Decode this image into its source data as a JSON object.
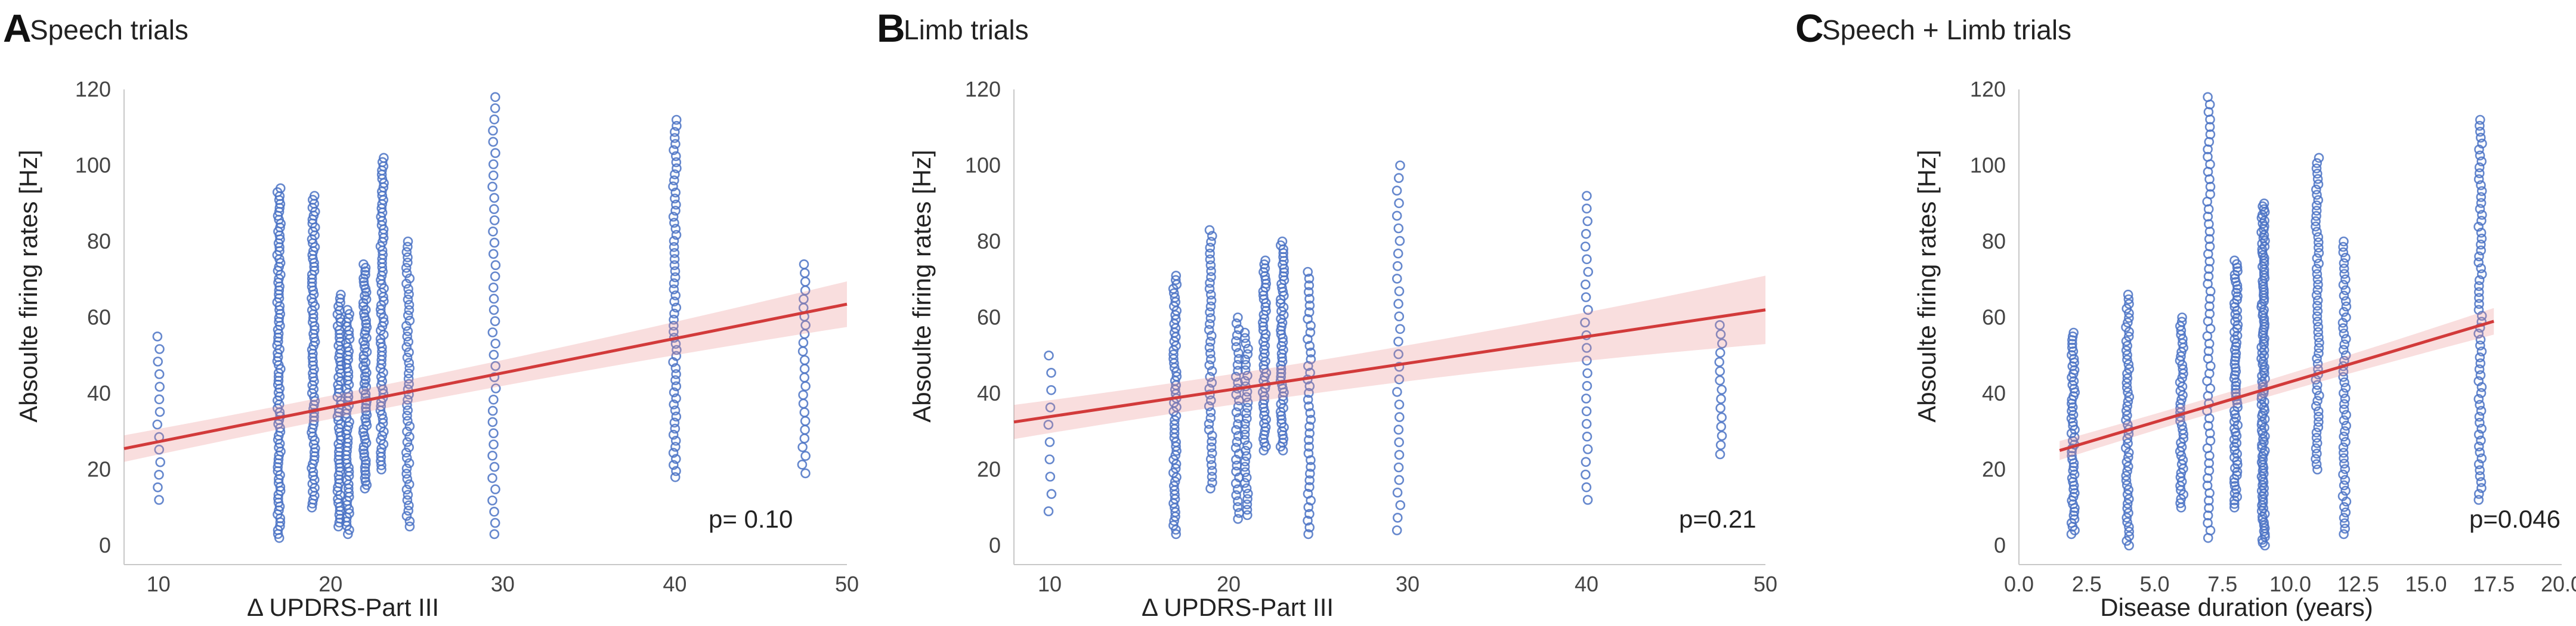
{
  "chart_data": [
    {
      "type": "scatter",
      "letter": "A",
      "title": "Speech trials",
      "xlabel": "Δ UPDRS-Part III",
      "ylabel": "Absoulte firing rates [Hz]",
      "xlim": [
        8,
        50
      ],
      "ylim": [
        0,
        120
      ],
      "xticks": [
        "10",
        "20",
        "30",
        "40",
        "50"
      ],
      "xtick_values": [
        10,
        20,
        30,
        40,
        50
      ],
      "yticks": [
        "0",
        "20",
        "40",
        "60",
        "80",
        "100",
        "120"
      ],
      "ytick_values": [
        0,
        20,
        40,
        60,
        80,
        100,
        120
      ],
      "annotation": "p= 0.10",
      "fit": {
        "x": [
          8,
          50
        ],
        "y": [
          25.5,
          63.5
        ],
        "ci_halfwidth": [
          3.5,
          6
        ]
      },
      "groups": [
        {
          "x": 10,
          "min": 12,
          "max": 55,
          "n": 14
        },
        {
          "x": 17,
          "min": 2,
          "max": 94,
          "n": 90
        },
        {
          "x": 19,
          "min": 10,
          "max": 92,
          "n": 80
        },
        {
          "x": 20.5,
          "min": 5,
          "max": 66,
          "n": 60
        },
        {
          "x": 21,
          "min": 3,
          "max": 62,
          "n": 55
        },
        {
          "x": 22,
          "min": 15,
          "max": 74,
          "n": 65
        },
        {
          "x": 23,
          "min": 20,
          "max": 102,
          "n": 75
        },
        {
          "x": 24.5,
          "min": 5,
          "max": 80,
          "n": 55
        },
        {
          "x": 29.5,
          "min": 3,
          "max": 118,
          "n": 40
        },
        {
          "x": 40,
          "min": 18,
          "max": 112,
          "n": 60
        },
        {
          "x": 47.5,
          "min": 19,
          "max": 74,
          "n": 25
        }
      ]
    },
    {
      "type": "scatter",
      "letter": "B",
      "title": "Limb trials",
      "xlabel": "Δ UPDRS-Part III",
      "ylabel": "Absoulte firing rates [Hz]",
      "xlim": [
        8,
        50
      ],
      "ylim": [
        0,
        120
      ],
      "xticks": [
        "10",
        "20",
        "30",
        "40",
        "50"
      ],
      "xtick_values": [
        10,
        20,
        30,
        40,
        50
      ],
      "yticks": [
        "0",
        "20",
        "40",
        "60",
        "80",
        "100",
        "120"
      ],
      "ytick_values": [
        0,
        20,
        40,
        60,
        80,
        100,
        120
      ],
      "annotation": "p=0.21",
      "fit": {
        "x": [
          8,
          50
        ],
        "y": [
          32.5,
          62
        ],
        "ci_halfwidth": [
          4.5,
          9
        ]
      },
      "groups": [
        {
          "x": 10,
          "min": 9,
          "max": 50,
          "n": 10
        },
        {
          "x": 17,
          "min": 3,
          "max": 71,
          "n": 60
        },
        {
          "x": 19,
          "min": 15,
          "max": 83,
          "n": 45
        },
        {
          "x": 20.5,
          "min": 7,
          "max": 60,
          "n": 35
        },
        {
          "x": 21,
          "min": 8,
          "max": 56,
          "n": 35
        },
        {
          "x": 22,
          "min": 25,
          "max": 75,
          "n": 50
        },
        {
          "x": 23,
          "min": 25,
          "max": 80,
          "n": 55
        },
        {
          "x": 24.5,
          "min": 3,
          "max": 72,
          "n": 40
        },
        {
          "x": 29.5,
          "min": 4,
          "max": 100,
          "n": 30
        },
        {
          "x": 40,
          "min": 12,
          "max": 92,
          "n": 25
        },
        {
          "x": 47.5,
          "min": 24,
          "max": 58,
          "n": 15
        }
      ]
    },
    {
      "type": "scatter",
      "letter": "C",
      "title": "Speech + Limb trials",
      "xlabel": "Disease duration (years)",
      "ylabel": "Absoulte firing rates [Hz]",
      "xlim": [
        0,
        20
      ],
      "ylim": [
        0,
        120
      ],
      "xticks": [
        "0.0",
        "2.5",
        "5.0",
        "7.5",
        "10.0",
        "12.5",
        "15.0",
        "17.5",
        "20.0"
      ],
      "xtick_values": [
        0,
        2.5,
        5,
        7.5,
        10,
        12.5,
        15,
        17.5,
        20
      ],
      "yticks": [
        "0",
        "20",
        "40",
        "60",
        "80",
        "100",
        "120"
      ],
      "ytick_values": [
        0,
        20,
        40,
        60,
        80,
        100,
        120
      ],
      "annotation": "p=0.046",
      "fit": {
        "x": [
          1.5,
          17.5
        ],
        "y": [
          25,
          59
        ],
        "ci_halfwidth": [
          2.5,
          3.5
        ]
      },
      "groups": [
        {
          "x": 2,
          "min": 3,
          "max": 56,
          "n": 55
        },
        {
          "x": 4,
          "min": 0,
          "max": 66,
          "n": 55
        },
        {
          "x": 6,
          "min": 10,
          "max": 60,
          "n": 45
        },
        {
          "x": 7,
          "min": 2,
          "max": 118,
          "n": 60
        },
        {
          "x": 8,
          "min": 10,
          "max": 75,
          "n": 70
        },
        {
          "x": 9,
          "min": 0,
          "max": 90,
          "n": 120
        },
        {
          "x": 11,
          "min": 20,
          "max": 102,
          "n": 60
        },
        {
          "x": 12,
          "min": 3,
          "max": 80,
          "n": 55
        },
        {
          "x": 17,
          "min": 12,
          "max": 112,
          "n": 65
        }
      ]
    }
  ]
}
